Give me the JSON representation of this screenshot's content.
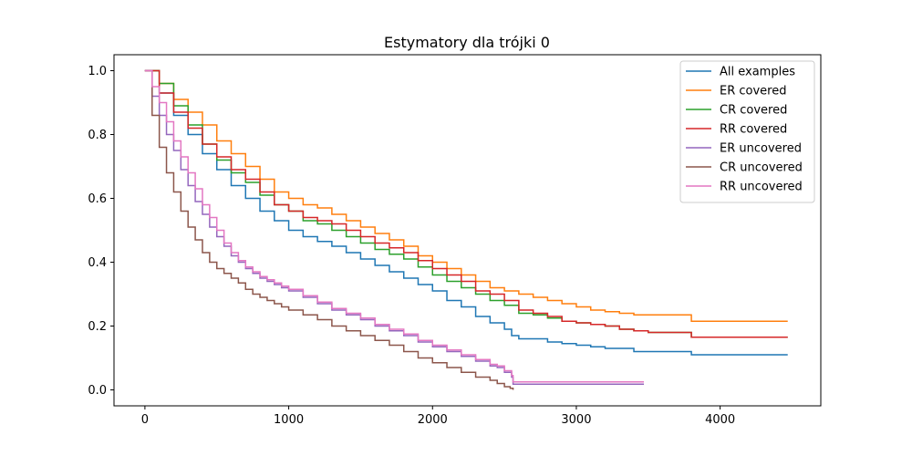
{
  "chart_data": {
    "type": "line",
    "title": "Estymatory dla trójki 0",
    "xlabel": "",
    "ylabel": "",
    "xlim": [
      -215,
      4700
    ],
    "ylim": [
      -0.05,
      1.05
    ],
    "xticks": [
      0,
      1000,
      2000,
      3000,
      4000
    ],
    "yticks": [
      0.0,
      0.2,
      0.4,
      0.6,
      0.8,
      1.0
    ],
    "xtick_labels": [
      "0",
      "1000",
      "2000",
      "3000",
      "4000"
    ],
    "ytick_labels": [
      "0.0",
      "0.2",
      "0.4",
      "0.6",
      "0.8",
      "1.0"
    ],
    "grid": false,
    "legend_position": "top-right",
    "series": [
      {
        "name": "All examples",
        "color": "#1f77b4",
        "x": [
          0,
          100,
          200,
          300,
          400,
          500,
          600,
          700,
          800,
          900,
          1000,
          1100,
          1200,
          1300,
          1400,
          1500,
          1600,
          1700,
          1800,
          1900,
          2000,
          2100,
          2200,
          2300,
          2400,
          2500,
          2550,
          2600,
          2700,
          2800,
          2900,
          3000,
          3100,
          3200,
          3300,
          3400,
          3500,
          3600,
          3700,
          3790,
          3800,
          4000,
          4200,
          4470
        ],
        "y": [
          1.0,
          0.93,
          0.86,
          0.8,
          0.74,
          0.69,
          0.64,
          0.6,
          0.56,
          0.53,
          0.5,
          0.48,
          0.465,
          0.45,
          0.43,
          0.41,
          0.39,
          0.37,
          0.35,
          0.33,
          0.31,
          0.28,
          0.26,
          0.23,
          0.21,
          0.19,
          0.17,
          0.16,
          0.16,
          0.15,
          0.145,
          0.14,
          0.135,
          0.13,
          0.13,
          0.12,
          0.12,
          0.12,
          0.12,
          0.12,
          0.11,
          0.11,
          0.11,
          0.11
        ]
      },
      {
        "name": "ER covered",
        "color": "#ff7f0e",
        "x": [
          0,
          100,
          200,
          300,
          400,
          500,
          600,
          700,
          800,
          900,
          1000,
          1100,
          1200,
          1300,
          1400,
          1500,
          1600,
          1700,
          1800,
          1900,
          2000,
          2100,
          2200,
          2300,
          2400,
          2500,
          2600,
          2700,
          2800,
          2900,
          3000,
          3100,
          3200,
          3300,
          3400,
          3500,
          3600,
          3700,
          3790,
          3800,
          4000,
          4200,
          4470
        ],
        "y": [
          1.0,
          0.96,
          0.91,
          0.87,
          0.83,
          0.78,
          0.74,
          0.7,
          0.66,
          0.62,
          0.6,
          0.58,
          0.57,
          0.55,
          0.53,
          0.51,
          0.49,
          0.47,
          0.45,
          0.42,
          0.4,
          0.38,
          0.36,
          0.34,
          0.32,
          0.31,
          0.3,
          0.29,
          0.28,
          0.27,
          0.26,
          0.25,
          0.245,
          0.24,
          0.235,
          0.235,
          0.235,
          0.235,
          0.235,
          0.215,
          0.215,
          0.215,
          0.215
        ]
      },
      {
        "name": "CR covered",
        "color": "#2ca02c",
        "x": [
          0,
          100,
          200,
          300,
          400,
          500,
          600,
          700,
          800,
          900,
          1000,
          1100,
          1200,
          1300,
          1400,
          1500,
          1600,
          1700,
          1800,
          1900,
          2000,
          2100,
          2200,
          2300,
          2400,
          2500,
          2600,
          2700,
          2800,
          2900,
          3000,
          3100,
          3200,
          3300,
          3400,
          3500,
          3600,
          3700,
          3790,
          3800,
          4000,
          4200,
          4470
        ],
        "y": [
          1.0,
          0.96,
          0.89,
          0.83,
          0.77,
          0.72,
          0.68,
          0.65,
          0.61,
          0.58,
          0.56,
          0.53,
          0.52,
          0.5,
          0.48,
          0.46,
          0.44,
          0.425,
          0.41,
          0.385,
          0.36,
          0.34,
          0.32,
          0.3,
          0.28,
          0.265,
          0.24,
          0.235,
          0.225,
          0.215,
          0.21,
          0.205,
          0.2,
          0.19,
          0.185,
          0.18,
          0.18,
          0.18,
          0.18,
          0.165,
          0.165,
          0.165,
          0.165
        ]
      },
      {
        "name": "RR covered",
        "color": "#d62728",
        "x": [
          0,
          100,
          200,
          300,
          400,
          500,
          600,
          700,
          800,
          900,
          1000,
          1100,
          1200,
          1300,
          1400,
          1500,
          1600,
          1700,
          1800,
          1900,
          2000,
          2100,
          2200,
          2300,
          2400,
          2500,
          2600,
          2700,
          2800,
          2900,
          3000,
          3100,
          3200,
          3300,
          3400,
          3500,
          3600,
          3700,
          3790,
          3800,
          4000,
          4200,
          4470
        ],
        "y": [
          1.0,
          0.93,
          0.87,
          0.82,
          0.77,
          0.73,
          0.69,
          0.66,
          0.62,
          0.58,
          0.56,
          0.54,
          0.53,
          0.52,
          0.5,
          0.48,
          0.46,
          0.445,
          0.43,
          0.405,
          0.38,
          0.36,
          0.34,
          0.31,
          0.3,
          0.28,
          0.25,
          0.24,
          0.23,
          0.215,
          0.21,
          0.205,
          0.2,
          0.19,
          0.185,
          0.18,
          0.18,
          0.18,
          0.18,
          0.165,
          0.165,
          0.165,
          0.165
        ]
      },
      {
        "name": "ER uncovered",
        "color": "#9467bd",
        "x": [
          0,
          50,
          100,
          150,
          200,
          250,
          300,
          350,
          400,
          450,
          500,
          550,
          600,
          650,
          700,
          750,
          800,
          850,
          900,
          950,
          1000,
          1100,
          1200,
          1300,
          1400,
          1500,
          1600,
          1700,
          1800,
          1900,
          2000,
          2100,
          2200,
          2300,
          2400,
          2450,
          2500,
          2550,
          2560,
          3000,
          3470
        ],
        "y": [
          1.0,
          0.92,
          0.86,
          0.8,
          0.75,
          0.69,
          0.64,
          0.59,
          0.55,
          0.51,
          0.48,
          0.45,
          0.42,
          0.4,
          0.38,
          0.365,
          0.35,
          0.34,
          0.33,
          0.32,
          0.31,
          0.29,
          0.27,
          0.25,
          0.235,
          0.22,
          0.2,
          0.185,
          0.17,
          0.15,
          0.135,
          0.12,
          0.105,
          0.09,
          0.075,
          0.07,
          0.055,
          0.04,
          0.018,
          0.018,
          0.018
        ]
      },
      {
        "name": "CR uncovered",
        "color": "#8c564b",
        "x": [
          0,
          50,
          100,
          150,
          200,
          250,
          300,
          350,
          400,
          450,
          500,
          550,
          600,
          650,
          700,
          750,
          800,
          850,
          900,
          950,
          1000,
          1100,
          1200,
          1300,
          1400,
          1500,
          1600,
          1700,
          1800,
          1900,
          2000,
          2100,
          2200,
          2300,
          2400,
          2450,
          2500,
          2540,
          2560
        ],
        "y": [
          1.0,
          0.86,
          0.76,
          0.68,
          0.62,
          0.56,
          0.51,
          0.47,
          0.43,
          0.4,
          0.38,
          0.365,
          0.35,
          0.335,
          0.315,
          0.3,
          0.29,
          0.28,
          0.27,
          0.26,
          0.25,
          0.235,
          0.22,
          0.2,
          0.185,
          0.17,
          0.155,
          0.14,
          0.12,
          0.1,
          0.085,
          0.07,
          0.055,
          0.04,
          0.03,
          0.02,
          0.01,
          0.005,
          0.0
        ]
      },
      {
        "name": "RR uncovered",
        "color": "#e377c2",
        "x": [
          0,
          50,
          100,
          150,
          200,
          250,
          300,
          350,
          400,
          450,
          500,
          550,
          600,
          650,
          700,
          750,
          800,
          850,
          900,
          950,
          1000,
          1100,
          1200,
          1300,
          1400,
          1500,
          1600,
          1700,
          1800,
          1900,
          2000,
          2100,
          2200,
          2300,
          2400,
          2450,
          2500,
          2550,
          2560,
          3000,
          3470
        ],
        "y": [
          1.0,
          0.95,
          0.9,
          0.84,
          0.78,
          0.73,
          0.68,
          0.63,
          0.58,
          0.54,
          0.5,
          0.46,
          0.43,
          0.405,
          0.385,
          0.37,
          0.355,
          0.345,
          0.335,
          0.325,
          0.315,
          0.295,
          0.275,
          0.255,
          0.24,
          0.225,
          0.205,
          0.19,
          0.175,
          0.155,
          0.14,
          0.125,
          0.11,
          0.095,
          0.08,
          0.075,
          0.06,
          0.045,
          0.025,
          0.025,
          0.025
        ]
      }
    ]
  }
}
